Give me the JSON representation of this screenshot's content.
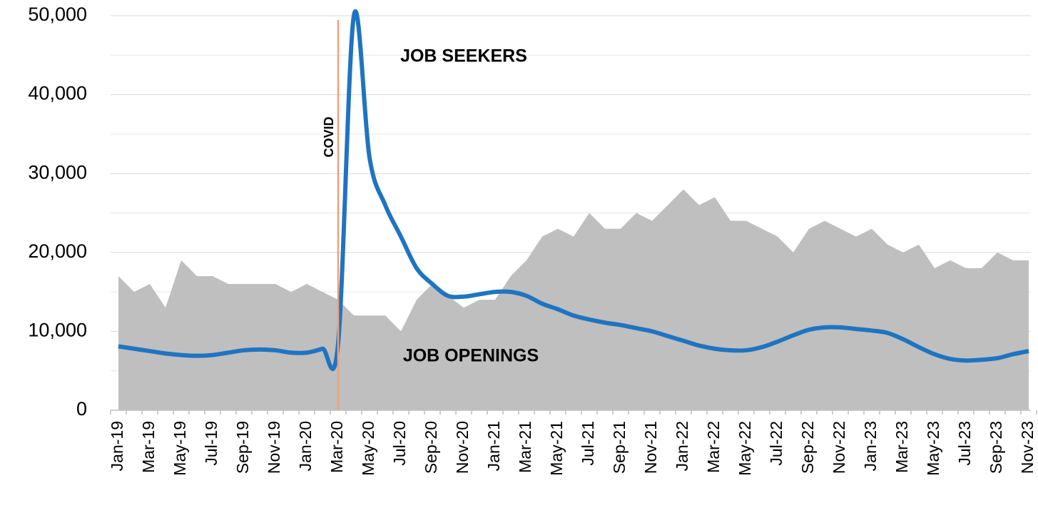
{
  "chart_data": {
    "type": "area_line",
    "categories": [
      "Jan-19",
      null,
      "Mar-19",
      null,
      "May-19",
      null,
      "Jul-19",
      null,
      "Sep-19",
      null,
      "Nov-19",
      null,
      "Jan-20",
      null,
      "Mar-20",
      null,
      "May-20",
      null,
      "Jul-20",
      null,
      "Sep-20",
      null,
      "Nov-20",
      null,
      "Jan-21",
      null,
      "Mar-21",
      null,
      "May-21",
      null,
      "Jul-21",
      null,
      "Sep-21",
      null,
      "Nov-21",
      null,
      "Jan-22",
      null,
      "Mar-22",
      null,
      "May-22",
      null,
      "Jul-22",
      null,
      "Sep-22",
      null,
      "Nov-22",
      null,
      "Jan-23",
      null,
      "Mar-23",
      null,
      "May-23",
      null,
      "Jul-23",
      null,
      "Sep-23",
      null,
      "Nov-23"
    ],
    "series": [
      {
        "name": "JOB OPENINGS",
        "kind": "area",
        "color": "#bfbfbf",
        "values": [
          17000,
          15000,
          16000,
          13000,
          19000,
          17000,
          17000,
          16000,
          16000,
          16000,
          16000,
          15000,
          16000,
          15000,
          14000,
          12000,
          12000,
          12000,
          10000,
          14000,
          16000,
          14500,
          13000,
          14000,
          14000,
          17000,
          19000,
          22000,
          23000,
          22000,
          25000,
          23000,
          23000,
          25000,
          24000,
          26000,
          28000,
          26000,
          27000,
          24000,
          24000,
          23000,
          22000,
          20000,
          23000,
          24000,
          23000,
          22000,
          23000,
          21000,
          20000,
          21000,
          18000,
          19000,
          18000,
          18000,
          20000,
          19000,
          19000
        ]
      },
      {
        "name": "JOB SEEKERS",
        "kind": "line",
        "color": "#1f74c1",
        "values": [
          8100,
          7800,
          7500,
          7200,
          7000,
          6900,
          7000,
          7300,
          7600,
          7700,
          7600,
          7300,
          7300,
          7800,
          8500,
          50000,
          32000,
          26000,
          22000,
          18000,
          16000,
          14500,
          14400,
          14700,
          15000,
          15000,
          14500,
          13500,
          12800,
          12000,
          11500,
          11100,
          10800,
          10400,
          10000,
          9400,
          8800,
          8200,
          7800,
          7600,
          7600,
          8000,
          8700,
          9500,
          10200,
          10500,
          10500,
          10300,
          10100,
          9800,
          9000,
          8000,
          7100,
          6500,
          6300,
          6400,
          6600,
          7100,
          7500
        ]
      }
    ],
    "annotations": [
      {
        "text": "COVID",
        "x": "Mar-20",
        "color": "#f0a07a"
      }
    ],
    "ylim": [
      0,
      50000
    ],
    "yticks": [
      0,
      {
        "value": 10000,
        "label": "10,000"
      },
      {
        "value": 20000,
        "label": "20,000"
      },
      {
        "value": 30000,
        "label": "30,000"
      },
      {
        "value": 40000,
        "label": "40,000"
      },
      {
        "value": 50000,
        "label": "50,000"
      }
    ],
    "minor_yticks": [
      5000,
      15000,
      25000,
      35000,
      45000
    ],
    "grid": true
  }
}
